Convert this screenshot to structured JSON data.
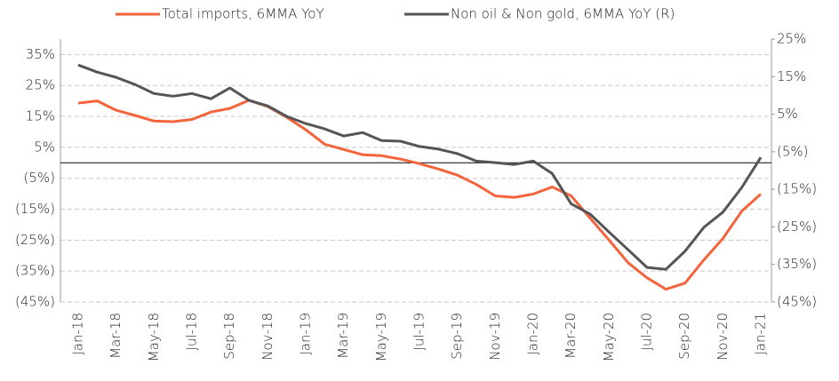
{
  "chart_data": {
    "type": "line",
    "categories": [
      "Jan-18",
      null,
      "Mar-18",
      null,
      "May-18",
      null,
      "Jul-18",
      null,
      "Sep-18",
      null,
      "Nov-18",
      null,
      "Jan-19",
      null,
      "Mar-19",
      null,
      "May-19",
      null,
      "Jul-19",
      null,
      "Sep-19",
      null,
      "Nov-19",
      null,
      "Jan-20",
      null,
      "Mar-20",
      null,
      "May-20",
      null,
      "Jul-20",
      null,
      "Sep-20",
      null,
      "Nov-20",
      null,
      "Jan-21"
    ],
    "series": [
      {
        "name": "Total imports, 6MMA YoY",
        "color": "#f4643c",
        "axis": "y",
        "values": [
          19.3,
          20,
          17,
          15.3,
          13.5,
          13.3,
          14,
          16.4,
          17.6,
          20.2,
          18.2,
          14.7,
          10.7,
          6,
          4.3,
          2.6,
          2.3,
          1.2,
          -0.3,
          -2,
          -4,
          -7,
          -10.7,
          -11.2,
          -10.1,
          -7.8,
          -10.7,
          -17.9,
          -25,
          -32.3,
          -37.2,
          -40.9,
          -38.9,
          -31.4,
          -24.5,
          -15.6,
          -10.1
        ]
      },
      {
        "name": "Non oil & Non gold, 6MMA YoY (R)",
        "color": "#555555",
        "axis": "y2",
        "values": [
          18.1,
          16.2,
          14.8,
          12.9,
          10.5,
          9.8,
          10.5,
          9.1,
          12,
          8.7,
          7.2,
          4.4,
          2.5,
          1.1,
          -0.8,
          0.1,
          -2,
          -2.2,
          -3.6,
          -4.3,
          -5.5,
          -7.5,
          -7.9,
          -8.4,
          -7.5,
          -10.8,
          -18.9,
          -21.6,
          -26.4,
          -31.1,
          -35.8,
          -36.3,
          -31.5,
          -25.1,
          -21.1,
          -14.5,
          -6.5
        ]
      }
    ],
    "ylim": [
      -45,
      40
    ],
    "yticks": [
      {
        "value": 35,
        "label": "35%"
      },
      {
        "value": 25,
        "label": "25%"
      },
      {
        "value": 15,
        "label": "15%"
      },
      {
        "value": 5,
        "label": "5%"
      },
      {
        "value": -5,
        "label": "(5%)"
      },
      {
        "value": -15,
        "label": "(15%)"
      },
      {
        "value": -25,
        "label": "(25%)"
      },
      {
        "value": -35,
        "label": "(35%)"
      },
      {
        "value": -45,
        "label": "(45%)"
      }
    ],
    "y2lim": [
      -45,
      25
    ],
    "y2ticks": [
      {
        "value": 25,
        "label": "25%"
      },
      {
        "value": 15,
        "label": "15%"
      },
      {
        "value": 5,
        "label": "5%"
      },
      {
        "value": -5,
        "label": "(5%)"
      },
      {
        "value": -15,
        "label": "(15%)"
      },
      {
        "value": -25,
        "label": "(25%)"
      },
      {
        "value": -35,
        "label": "(35%)"
      },
      {
        "value": -45,
        "label": "(45%)"
      }
    ],
    "grid": true,
    "legend": "top"
  }
}
